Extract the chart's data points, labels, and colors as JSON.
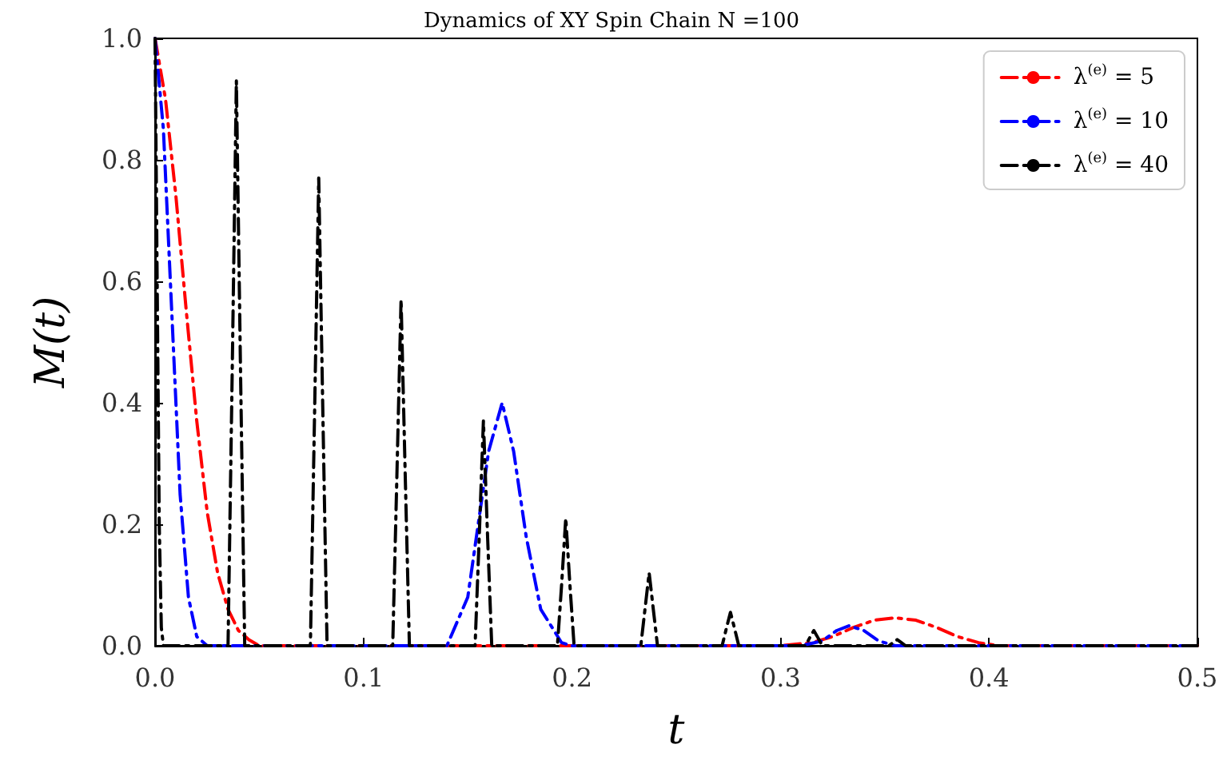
{
  "chart_data": {
    "type": "line",
    "title": "Dynamics of XY Spin Chain N =100",
    "xlabel": "t",
    "ylabel": "M(t)",
    "xlim": [
      0,
      0.5
    ],
    "xticks": [
      {
        "value": 0,
        "label": "0.0"
      },
      0.1,
      0.2,
      0.3,
      0.4,
      0.5
    ],
    "ylim": [
      0,
      1
    ],
    "yticks": [
      {
        "value": 0,
        "label": "0.0"
      },
      0.2,
      0.4,
      0.6,
      0.8,
      {
        "value": 1,
        "label": "1.0"
      }
    ],
    "grid": false,
    "legend": "top right",
    "line_style": "dashed",
    "marker": "none",
    "series": [
      {
        "name": "λ$^{(e)}$ = 5",
        "color": "#ff0000",
        "x": [
          0,
          0.005,
          0.01,
          0.015,
          0.02,
          0.025,
          0.03,
          0.035,
          0.04,
          0.045,
          0.05,
          0.3,
          0.315,
          0.325,
          0.335,
          0.345,
          0.355,
          0.365,
          0.375,
          0.385,
          0.395,
          0.405,
          0.5
        ],
        "values": [
          1,
          0.9,
          0.74,
          0.55,
          0.37,
          0.22,
          0.12,
          0.06,
          0.025,
          0.01,
          0,
          0,
          0.005,
          0.015,
          0.03,
          0.042,
          0.046,
          0.042,
          0.03,
          0.015,
          0.005,
          0,
          0
        ]
      },
      {
        "name": "λ$^{(e)}$ = 10",
        "color": "#0000ff",
        "x": [
          0,
          0.004,
          0.008,
          0.012,
          0.016,
          0.02,
          0.025,
          0.14,
          0.15,
          0.155,
          0.16,
          0.1665,
          0.172,
          0.178,
          0.185,
          0.195,
          0.2,
          0.31,
          0.32,
          0.327,
          0.333,
          0.34,
          0.347,
          0.355,
          0.5
        ],
        "values": [
          1,
          0.85,
          0.55,
          0.25,
          0.08,
          0.015,
          0,
          0,
          0.08,
          0.2,
          0.32,
          0.4,
          0.32,
          0.18,
          0.06,
          0.005,
          0,
          0,
          0.008,
          0.025,
          0.033,
          0.025,
          0.008,
          0,
          0
        ]
      },
      {
        "name": "λ$^{(e)}$ = 40",
        "color": "#000000",
        "x": [
          0,
          0.001,
          0.002,
          0.003,
          0.004,
          0.035,
          0.037,
          0.039,
          0.041,
          0.043,
          0.0745,
          0.0765,
          0.0785,
          0.0805,
          0.0825,
          0.114,
          0.116,
          0.118,
          0.12,
          0.122,
          0.1535,
          0.1555,
          0.1575,
          0.1595,
          0.1615,
          0.193,
          0.195,
          0.197,
          0.199,
          0.201,
          0.233,
          0.235,
          0.237,
          0.239,
          0.241,
          0.272,
          0.274,
          0.276,
          0.278,
          0.28,
          0.312,
          0.314,
          0.316,
          0.318,
          0.32,
          0.352,
          0.354,
          0.356,
          0.358,
          0.36,
          0.5
        ],
        "values": [
          1,
          0.6,
          0.2,
          0.03,
          0,
          0,
          0.45,
          0.93,
          0.45,
          0,
          0,
          0.38,
          0.77,
          0.38,
          0,
          0,
          0.28,
          0.57,
          0.28,
          0,
          0,
          0.18,
          0.37,
          0.18,
          0,
          0,
          0.1,
          0.21,
          0.1,
          0,
          0,
          0.06,
          0.12,
          0.06,
          0,
          0,
          0.028,
          0.055,
          0.028,
          0,
          0,
          0.013,
          0.025,
          0.013,
          0,
          0,
          0.005,
          0.01,
          0.005,
          0,
          0
        ]
      }
    ]
  }
}
